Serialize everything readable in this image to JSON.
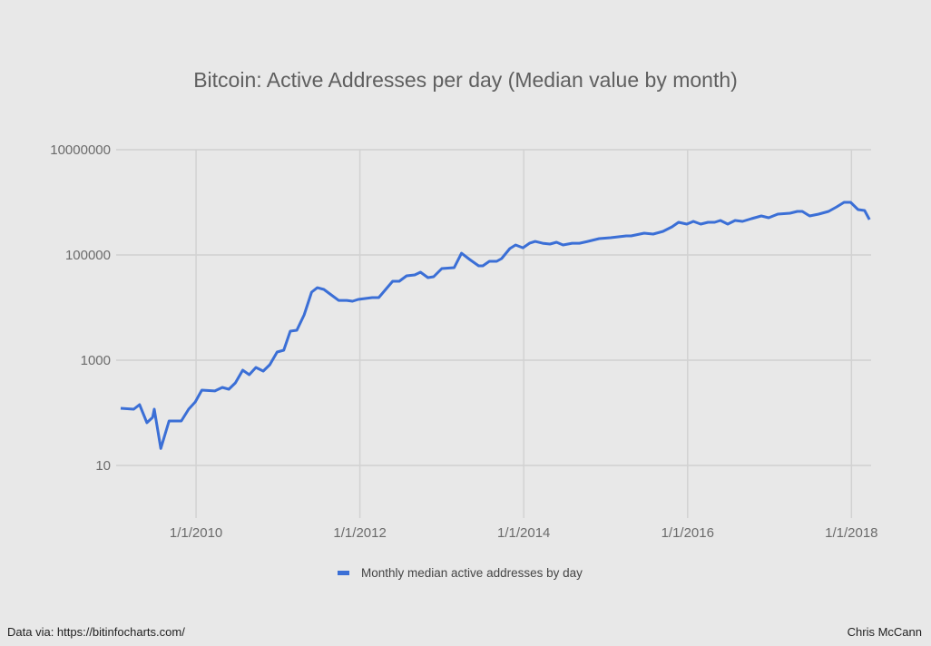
{
  "chart_data": {
    "type": "line",
    "title": "Bitcoin: Active Addresses per day (Median value by month)",
    "xlabel": "",
    "ylabel": "",
    "yscale": "log",
    "xlim": [
      2009.08,
      2018.24
    ],
    "ylim": [
      1,
      10000000
    ],
    "grid": true,
    "legend_position": "bottom",
    "x_ticks": [
      {
        "value": 2010,
        "label": "1/1/2010"
      },
      {
        "value": 2012,
        "label": "1/1/2012"
      },
      {
        "value": 2014,
        "label": "1/1/2014"
      },
      {
        "value": 2016,
        "label": "1/1/2016"
      },
      {
        "value": 2018,
        "label": "1/1/2018"
      }
    ],
    "y_ticks": [
      {
        "value": 10,
        "label": "10"
      },
      {
        "value": 1000,
        "label": "1000"
      },
      {
        "value": 100000,
        "label": "100000"
      },
      {
        "value": 10000000,
        "label": "10000000"
      }
    ],
    "series": [
      {
        "name": "Monthly median active addresses by day",
        "color": "#3b6fd6",
        "x": [
          2009.08,
          2009.24,
          2009.31,
          2009.4,
          2009.47,
          2009.49,
          2009.57,
          2009.67,
          2009.82,
          2009.91,
          2009.99,
          2010.07,
          2010.23,
          2010.32,
          2010.4,
          2010.48,
          2010.57,
          2010.65,
          2010.73,
          2010.82,
          2010.9,
          2010.99,
          2011.07,
          2011.15,
          2011.23,
          2011.32,
          2011.41,
          2011.48,
          2011.56,
          2011.65,
          2011.74,
          2011.84,
          2011.91,
          2011.98,
          2012.15,
          2012.23,
          2012.4,
          2012.48,
          2012.57,
          2012.67,
          2012.74,
          2012.83,
          2012.9,
          2013.0,
          2013.15,
          2013.24,
          2013.34,
          2013.45,
          2013.5,
          2013.58,
          2013.67,
          2013.73,
          2013.83,
          2013.9,
          2013.99,
          2014.07,
          2014.14,
          2014.23,
          2014.32,
          2014.4,
          2014.48,
          2014.59,
          2014.68,
          2014.78,
          2014.92,
          2015.06,
          2015.25,
          2015.31,
          2015.47,
          2015.58,
          2015.7,
          2015.81,
          2015.89,
          2015.99,
          2016.07,
          2016.16,
          2016.25,
          2016.33,
          2016.4,
          2016.49,
          2016.58,
          2016.67,
          2016.78,
          2016.9,
          2016.99,
          2017.1,
          2017.25,
          2017.34,
          2017.4,
          2017.49,
          2017.6,
          2017.72,
          2017.82,
          2017.91,
          2017.99,
          2018.08,
          2018.16,
          2018.22
        ],
        "values": [
          122,
          117,
          143,
          65,
          82,
          117,
          21,
          70,
          70,
          117,
          161,
          270,
          260,
          304,
          281,
          371,
          646,
          530,
          728,
          621,
          820,
          1430,
          1550,
          3560,
          3710,
          7280,
          19600,
          23900,
          22100,
          17400,
          13700,
          13700,
          13200,
          14300,
          15500,
          15500,
          31600,
          31600,
          40100,
          41800,
          47000,
          37100,
          38500,
          55100,
          57400,
          108000,
          82000,
          62100,
          62100,
          75700,
          75700,
          85300,
          132000,
          155000,
          137000,
          167000,
          181000,
          167000,
          161000,
          174000,
          155000,
          167000,
          167000,
          181000,
          204000,
          213000,
          230000,
          230000,
          259000,
          249000,
          281000,
          342000,
          418000,
          385000,
          434000,
          385000,
          418000,
          418000,
          452000,
          385000,
          452000,
          434000,
          490000,
          551000,
          509000,
          597000,
          621000,
          673000,
          673000,
          551000,
          597000,
          673000,
          820000,
          1000000,
          1000000,
          728000,
          700000,
          470000
        ]
      }
    ]
  },
  "footer": {
    "source": "Data via: https://bitinfocharts.com/",
    "author": "Chris McCann"
  }
}
